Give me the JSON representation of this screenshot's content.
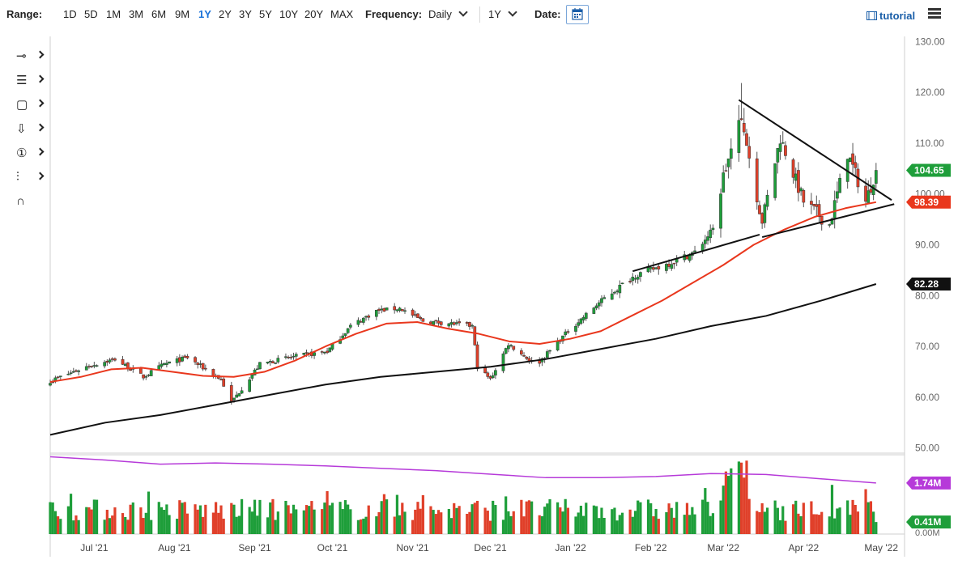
{
  "toolbar": {
    "range_label": "Range:",
    "ranges": [
      "1D",
      "5D",
      "1M",
      "3M",
      "6M",
      "9M",
      "1Y",
      "2Y",
      "3Y",
      "5Y",
      "10Y",
      "20Y",
      "MAX"
    ],
    "active_range": "1Y",
    "frequency_label": "Frequency:",
    "frequency_value": "Daily",
    "period_value": "1Y",
    "date_label": "Date:",
    "tutorial_label": "tutorial"
  },
  "side_tools": [
    "crosshair-tool",
    "fibonacci-tool",
    "rectangle-tool",
    "arrow-tool",
    "counter-tool",
    "pitchfork-tool",
    "magnet-tool"
  ],
  "colors": {
    "up": "#1e9e3a",
    "down": "#e0402a",
    "ma_fast": "#e9371d",
    "ma_slow": "#111111",
    "volume_ma": "#b63ad9",
    "price_badge": "#1e9e3a",
    "ma_fast_badge": "#e9371d",
    "ma_slow_badge": "#111111",
    "vol_ma_badge": "#b63ad9",
    "vol_badge": "#1e9e3a"
  },
  "chart_data": {
    "type": "candlestick",
    "y_axis": {
      "ticks": [
        "130.00",
        "120.00",
        "110.00",
        "100.00",
        "90.00",
        "80.00",
        "70.00",
        "60.00",
        "50.00"
      ],
      "range": [
        49,
        131
      ]
    },
    "x_axis": {
      "ticks": [
        "Jul '21",
        "Aug '21",
        "Sep '21",
        "Oct '21",
        "Nov '21",
        "Dec '21",
        "Jan '22",
        "Feb '22",
        "Mar '22",
        "Apr '22",
        "May '22"
      ]
    },
    "price_path": [
      {
        "date": "2021-06-14",
        "close": 63.2
      },
      {
        "date": "2021-06-28",
        "close": 66.0
      },
      {
        "date": "2021-07-09",
        "close": 67.5
      },
      {
        "date": "2021-07-20",
        "close": 64.0
      },
      {
        "date": "2021-07-28",
        "close": 66.5
      },
      {
        "date": "2021-08-06",
        "close": 67.8
      },
      {
        "date": "2021-08-19",
        "close": 63.5
      },
      {
        "date": "2021-08-23",
        "close": 59.0
      },
      {
        "date": "2021-09-03",
        "close": 66.5
      },
      {
        "date": "2021-09-14",
        "close": 67.8
      },
      {
        "date": "2021-09-29",
        "close": 69.0
      },
      {
        "date": "2021-10-08",
        "close": 74.0
      },
      {
        "date": "2021-10-18",
        "close": 77.0
      },
      {
        "date": "2021-10-27",
        "close": 77.5
      },
      {
        "date": "2021-11-05",
        "close": 75.0
      },
      {
        "date": "2021-11-16",
        "close": 74.5
      },
      {
        "date": "2021-11-24",
        "close": 74.0
      },
      {
        "date": "2021-11-26",
        "close": 66.0
      },
      {
        "date": "2021-12-01",
        "close": 63.5
      },
      {
        "date": "2021-12-08",
        "close": 70.5
      },
      {
        "date": "2021-12-17",
        "close": 67.0
      },
      {
        "date": "2021-12-20",
        "close": 67.0
      },
      {
        "date": "2021-12-31",
        "close": 73.0
      },
      {
        "date": "2022-01-14",
        "close": 79.5
      },
      {
        "date": "2022-01-26",
        "close": 84.0
      },
      {
        "date": "2022-02-09",
        "close": 86.5
      },
      {
        "date": "2022-02-18",
        "close": 88.5
      },
      {
        "date": "2022-02-25",
        "close": 93.0
      },
      {
        "date": "2022-03-01",
        "close": 103.5
      },
      {
        "date": "2022-03-08",
        "close": 115.0
      },
      {
        "date": "2022-03-16",
        "close": 94.5
      },
      {
        "date": "2022-03-23",
        "close": 111.0
      },
      {
        "date": "2022-04-01",
        "close": 98.5
      },
      {
        "date": "2022-04-11",
        "close": 94.0
      },
      {
        "date": "2022-04-18",
        "close": 108.0
      },
      {
        "date": "2022-04-25",
        "close": 98.5
      },
      {
        "date": "2022-04-29",
        "close": 104.65
      }
    ],
    "ma_fast_path": [
      63.0,
      64.0,
      65.5,
      65.8,
      65.0,
      64.2,
      64.0,
      65.0,
      67.2,
      70.0,
      72.5,
      74.5,
      74.8,
      73.5,
      72.5,
      71.0,
      70.5,
      71.5,
      73.0,
      76.0,
      79.0,
      82.5,
      86.0,
      90.0,
      93.0,
      95.5,
      97.2,
      98.39
    ],
    "ma_slow_path": [
      52.6,
      55.0,
      56.5,
      58.5,
      60.5,
      62.5,
      64.0,
      65.0,
      66.0,
      67.5,
      69.5,
      71.5,
      74.0,
      76.0,
      79.0,
      82.28
    ],
    "volume_ma_path": [
      2.63,
      2.52,
      2.38,
      2.42,
      2.38,
      2.32,
      2.24,
      2.16,
      2.04,
      1.92,
      1.92,
      1.96,
      2.06,
      2.03,
      1.88,
      1.74
    ],
    "labels": {
      "last_price": "104.65",
      "ma_fast_last": "98.39",
      "ma_slow_last": "82.28",
      "volume_ma_last": "1.74M",
      "volume_last": "0.41M",
      "volume_axis_zero": "0.00M"
    },
    "trendlines": [
      {
        "from": {
          "date": "2022-03-07",
          "value": 118.5
        },
        "to": {
          "date": "2022-05-05",
          "value": 98.8
        }
      },
      {
        "from": {
          "date": "2022-03-16",
          "value": 91.5
        },
        "to": {
          "date": "2022-05-06",
          "value": 98.0
        }
      },
      {
        "from": {
          "date": "2022-01-25",
          "value": 84.8
        },
        "to": {
          "date": "2022-03-15",
          "value": 92.0
        }
      }
    ]
  }
}
